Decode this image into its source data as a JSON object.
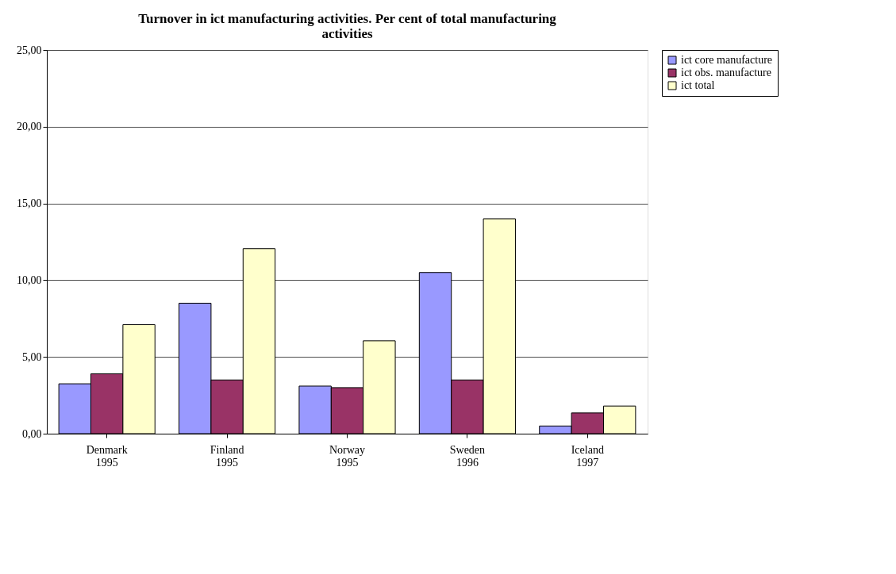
{
  "chart_data": {
    "type": "bar",
    "title": "Turnover in ict manufacturing activities. Per cent of total manufacturing activities",
    "categories": [
      "Denmark 1995",
      "Finland 1995",
      "Norway 1995",
      "Sweden 1996",
      "Iceland 1997"
    ],
    "series": [
      {
        "name": "ict core manufacture",
        "color": "#9999ff",
        "values": [
          3.25,
          8.5,
          3.1,
          10.5,
          0.5
        ]
      },
      {
        "name": "ict obs. manufacture",
        "color": "#993366",
        "values": [
          3.9,
          3.5,
          3.0,
          3.5,
          1.35
        ]
      },
      {
        "name": "ict total",
        "color": "#ffffcc",
        "values": [
          7.1,
          12.05,
          6.05,
          14.0,
          1.8
        ]
      }
    ],
    "ylim": [
      0,
      25
    ],
    "yticks": [
      {
        "value": 0,
        "label": "0,00"
      },
      {
        "value": 5,
        "label": "5,00"
      },
      {
        "value": 10,
        "label": "10,00"
      },
      {
        "value": 15,
        "label": "15,00"
      },
      {
        "value": 20,
        "label": "20,00"
      },
      {
        "value": 25,
        "label": "25,00"
      }
    ],
    "grid": "y",
    "legend": "right"
  }
}
